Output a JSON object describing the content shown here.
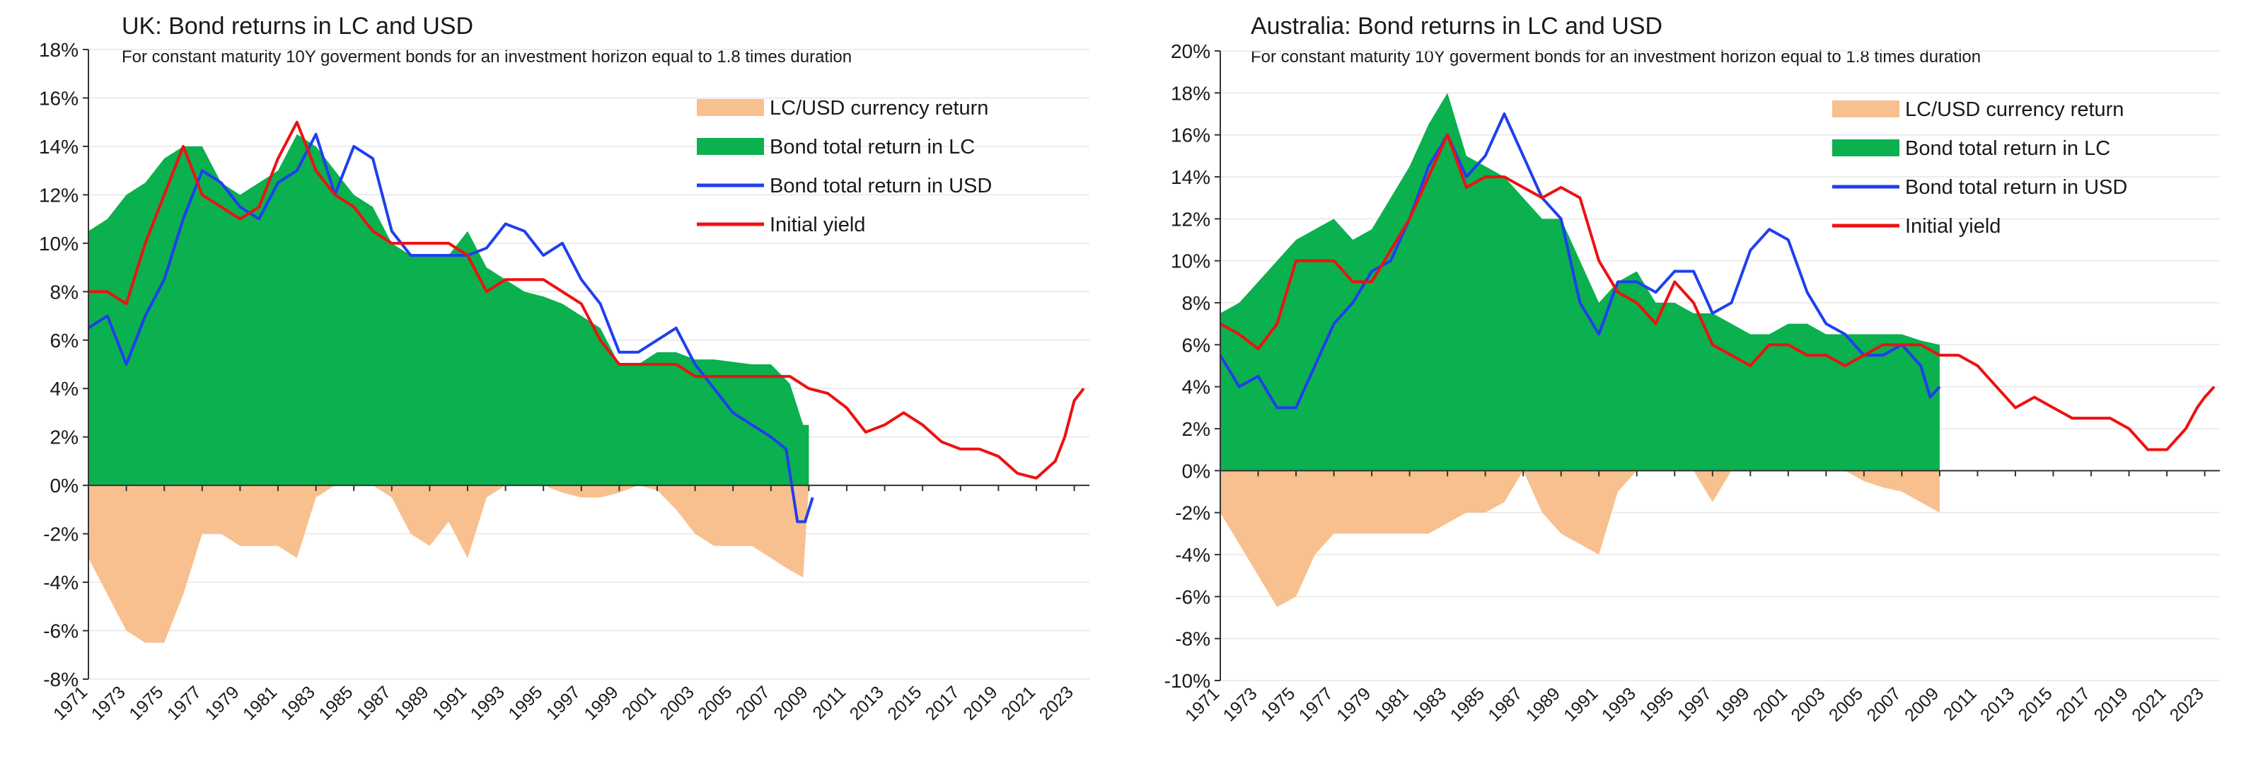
{
  "colors": {
    "currency": "#f8c08e",
    "lc": "#0bb04f",
    "usd": "#1f3ff0",
    "yield": "#ee1111",
    "grid": "#e6e6e6",
    "axis": "#333333"
  },
  "chart_data": [
    {
      "type": "area",
      "title": "UK: Bond returns in LC and USD",
      "subtitle": "For constant maturity 10Y goverment bonds for an investment horizon equal to 1.8 times duration",
      "ylim": [
        -8,
        18
      ],
      "yticks": [
        -8,
        -6,
        -4,
        -2,
        0,
        2,
        4,
        6,
        8,
        10,
        12,
        14,
        16,
        18
      ],
      "ytick_labels": [
        "-8%",
        "-6%",
        "-4%",
        "-2%",
        "0%",
        "2%",
        "4%",
        "6%",
        "8%",
        "10%",
        "12%",
        "14%",
        "16%",
        "18%"
      ],
      "xlim": [
        1971,
        2023.8
      ],
      "xticks": [
        1971,
        1973,
        1975,
        1977,
        1979,
        1981,
        1983,
        1985,
        1987,
        1989,
        1991,
        1993,
        1995,
        1997,
        1999,
        2001,
        2003,
        2005,
        2007,
        2009,
        2011,
        2013,
        2015,
        2017,
        2019,
        2021,
        2023
      ],
      "xtick_labels": [
        "1971",
        "1973",
        "1975",
        "1977",
        "1979",
        "1981",
        "1983",
        "1985",
        "1987",
        "1989",
        "1991",
        "1993",
        "1995",
        "1997",
        "1999",
        "2001",
        "2003",
        "2005",
        "2007",
        "2009",
        "2011",
        "2013",
        "2015",
        "2017",
        "2019",
        "2021",
        "2023"
      ],
      "legend": [
        {
          "key": "currency",
          "label": "LC/USD currency return"
        },
        {
          "key": "lc",
          "label": "Bond total return in LC"
        },
        {
          "key": "usd",
          "label": "Bond total return in USD"
        },
        {
          "key": "yield",
          "label": "Initial yield"
        }
      ],
      "series": {
        "lc": {
          "x": [
            1971,
            1972,
            1973,
            1974,
            1975,
            1976,
            1977,
            1978,
            1979,
            1980,
            1981,
            1982,
            1983,
            1984,
            1985,
            1986,
            1987,
            1988,
            1989,
            1990,
            1991,
            1992,
            1993,
            1994,
            1995,
            1996,
            1997,
            1998,
            1999,
            2000,
            2001,
            2002,
            2003,
            2004,
            2005,
            2006,
            2007,
            2008,
            2008.7,
            2009
          ],
          "y": [
            10.5,
            11,
            12,
            12.5,
            13.5,
            14,
            14,
            12.5,
            12,
            12.5,
            13,
            14.5,
            14,
            13,
            12,
            11.5,
            10,
            9.5,
            9.5,
            9.5,
            10.5,
            9,
            8.5,
            8,
            7.8,
            7.5,
            7,
            6.5,
            5,
            5,
            5.5,
            5.5,
            5.2,
            5.2,
            5.1,
            5,
            5,
            4.2,
            2.5,
            2.5
          ]
        },
        "currency": {
          "x": [
            1971,
            1972,
            1973,
            1974,
            1975,
            1976,
            1977,
            1978,
            1979,
            1980,
            1981,
            1982,
            1983,
            1984,
            1985,
            1986,
            1987,
            1988,
            1989,
            1990,
            1991,
            1992,
            1993,
            1994,
            1995,
            1996,
            1997,
            1998,
            1999,
            2000,
            2001,
            2002,
            2003,
            2004,
            2005,
            2006,
            2007,
            2008,
            2008.7,
            2009
          ],
          "y": [
            -3,
            -4.5,
            -6,
            -6.5,
            -6.5,
            -4.5,
            -2,
            -2,
            -2.5,
            -2.5,
            -2.5,
            -3,
            -0.5,
            0,
            0,
            0,
            -0.5,
            -2,
            -2.5,
            -1.5,
            -3,
            -0.5,
            0,
            0,
            0,
            -0.3,
            -0.5,
            -0.5,
            -0.3,
            0,
            -0.2,
            -1,
            -2,
            -2.5,
            -2.5,
            -2.5,
            -3,
            -3.5,
            -3.8,
            0
          ]
        },
        "usd": {
          "x": [
            1971,
            1972,
            1973,
            1974,
            1975,
            1976,
            1977,
            1978,
            1979,
            1980,
            1981,
            1982,
            1983,
            1984,
            1985,
            1986,
            1987,
            1988,
            1989,
            1990,
            1991,
            1992,
            1993,
            1994,
            1995,
            1996,
            1997,
            1998,
            1999,
            2000,
            2001,
            2002,
            2003,
            2004,
            2005,
            2006,
            2007,
            2007.8,
            2008.4,
            2008.8,
            2009.2
          ],
          "y": [
            6.5,
            7,
            5,
            7,
            8.5,
            11,
            13,
            12.5,
            11.5,
            11,
            12.5,
            13,
            14.5,
            12,
            14,
            13.5,
            10.5,
            9.5,
            9.5,
            9.5,
            9.5,
            9.8,
            10.8,
            10.5,
            9.5,
            10,
            8.5,
            7.5,
            5.5,
            5.5,
            6,
            6.5,
            5,
            4,
            3,
            2.5,
            2,
            1.5,
            -1.5,
            -1.5,
            -0.5
          ]
        },
        "yield": {
          "x": [
            1971,
            1972,
            1973,
            1974,
            1975,
            1976,
            1977,
            1978,
            1979,
            1980,
            1981,
            1982,
            1983,
            1984,
            1985,
            1986,
            1987,
            1988,
            1989,
            1990,
            1991,
            1992,
            1993,
            1994,
            1995,
            1996,
            1997,
            1998,
            1999,
            2000,
            2001,
            2002,
            2003,
            2004,
            2005,
            2006,
            2007,
            2008,
            2009,
            2010,
            2011,
            2012,
            2013,
            2014,
            2015,
            2016,
            2017,
            2018,
            2019,
            2020,
            2021,
            2022,
            2022.5,
            2023,
            2023.5
          ],
          "y": [
            8,
            8,
            7.5,
            10,
            12,
            14,
            12,
            11.5,
            11,
            11.5,
            13.5,
            15,
            13,
            12,
            11.5,
            10.5,
            10,
            10,
            10,
            10,
            9.5,
            8,
            8.5,
            8.5,
            8.5,
            8,
            7.5,
            6,
            5,
            5,
            5,
            5,
            4.5,
            4.5,
            4.5,
            4.5,
            4.5,
            4.5,
            4,
            3.8,
            3.2,
            2.2,
            2.5,
            3,
            2.5,
            1.8,
            1.5,
            1.5,
            1.2,
            0.5,
            0.3,
            1,
            2,
            3.5,
            4
          ]
        }
      }
    },
    {
      "type": "area",
      "title": "Australia: Bond returns in LC and USD",
      "subtitle": "For constant maturity 10Y goverment bonds for an investment horizon equal to 1.8 times duration",
      "ylim": [
        -10,
        20
      ],
      "yticks": [
        -10,
        -8,
        -6,
        -4,
        -2,
        0,
        2,
        4,
        6,
        8,
        10,
        12,
        14,
        16,
        18,
        20
      ],
      "ytick_labels": [
        "-10%",
        "-8%",
        "-6%",
        "-4%",
        "-2%",
        "0%",
        "2%",
        "4%",
        "6%",
        "8%",
        "10%",
        "12%",
        "14%",
        "16%",
        "18%",
        "20%"
      ],
      "xlim": [
        1971,
        2023.8
      ],
      "xticks": [
        1971,
        1973,
        1975,
        1977,
        1979,
        1981,
        1983,
        1985,
        1987,
        1989,
        1991,
        1993,
        1995,
        1997,
        1999,
        2001,
        2003,
        2005,
        2007,
        2009,
        2011,
        2013,
        2015,
        2017,
        2019,
        2021,
        2023
      ],
      "xtick_labels": [
        "1971",
        "1973",
        "1975",
        "1977",
        "1979",
        "1981",
        "1983",
        "1985",
        "1987",
        "1989",
        "1991",
        "1993",
        "1995",
        "1997",
        "1999",
        "2001",
        "2003",
        "2005",
        "2007",
        "2009",
        "2011",
        "2013",
        "2015",
        "2017",
        "2019",
        "2021",
        "2023"
      ],
      "legend": [
        {
          "key": "currency",
          "label": "LC/USD currency return"
        },
        {
          "key": "lc",
          "label": "Bond total return in LC"
        },
        {
          "key": "usd",
          "label": "Bond total return in USD"
        },
        {
          "key": "yield",
          "label": "Initial yield"
        }
      ],
      "series": {
        "lc": {
          "x": [
            1971,
            1972,
            1973,
            1974,
            1975,
            1976,
            1977,
            1978,
            1979,
            1980,
            1981,
            1982,
            1983,
            1984,
            1985,
            1986,
            1987,
            1988,
            1989,
            1990,
            1991,
            1992,
            1993,
            1994,
            1995,
            1996,
            1997,
            1998,
            1999,
            2000,
            2001,
            2002,
            2003,
            2004,
            2005,
            2006,
            2007,
            2008,
            2009
          ],
          "y": [
            7.5,
            8,
            9,
            10,
            11,
            11.5,
            12,
            11,
            11.5,
            13,
            14.5,
            16.5,
            18,
            15,
            14.5,
            14,
            13,
            12,
            12,
            10,
            8,
            9,
            9.5,
            8,
            8,
            7.5,
            7.5,
            7,
            6.5,
            6.5,
            7,
            7,
            6.5,
            6.5,
            6.5,
            6.5,
            6.5,
            6.2,
            6
          ]
        },
        "currency": {
          "x": [
            1971,
            1972,
            1973,
            1974,
            1975,
            1976,
            1977,
            1978,
            1979,
            1980,
            1981,
            1982,
            1983,
            1984,
            1985,
            1986,
            1987,
            1988,
            1989,
            1990,
            1991,
            1992,
            1993,
            1994,
            1995,
            1996,
            1997,
            1998,
            1999,
            2000,
            2001,
            2002,
            2003,
            2004,
            2005,
            2006,
            2007,
            2008,
            2009
          ],
          "y": [
            -2,
            -3.5,
            -5,
            -6.5,
            -6,
            -4,
            -3,
            -3,
            -3,
            -3,
            -3,
            -3,
            -2.5,
            -2,
            -2,
            -1.5,
            0,
            -2,
            -3,
            -3.5,
            -4,
            -1,
            0,
            0,
            0,
            0,
            -1.5,
            0,
            0,
            0,
            0,
            0,
            0,
            0,
            -0.5,
            -0.8,
            -1,
            -1.5,
            -2
          ]
        },
        "usd": {
          "x": [
            1971,
            1972,
            1973,
            1974,
            1975,
            1976,
            1977,
            1978,
            1979,
            1980,
            1981,
            1982,
            1983,
            1984,
            1985,
            1986,
            1987,
            1988,
            1989,
            1990,
            1991,
            1992,
            1993,
            1994,
            1995,
            1996,
            1997,
            1998,
            1999,
            2000,
            2001,
            2002,
            2003,
            2004,
            2005,
            2006,
            2007,
            2008,
            2008.5,
            2009
          ],
          "y": [
            5.5,
            4,
            4.5,
            3,
            3,
            5,
            7,
            8,
            9.5,
            10,
            12,
            14.5,
            16,
            14,
            15,
            17,
            15,
            13,
            12,
            8,
            6.5,
            9,
            9,
            8.5,
            9.5,
            9.5,
            7.5,
            8,
            10.5,
            11.5,
            11,
            8.5,
            7,
            6.5,
            5.5,
            5.5,
            6,
            5,
            3.5,
            4
          ]
        },
        "yield": {
          "x": [
            1971,
            1972,
            1973,
            1974,
            1975,
            1976,
            1977,
            1978,
            1979,
            1980,
            1981,
            1982,
            1983,
            1984,
            1985,
            1986,
            1987,
            1988,
            1989,
            1990,
            1991,
            1992,
            1993,
            1994,
            1995,
            1996,
            1997,
            1998,
            1999,
            2000,
            2001,
            2002,
            2003,
            2004,
            2005,
            2006,
            2007,
            2008,
            2009,
            2010,
            2011,
            2012,
            2013,
            2014,
            2015,
            2016,
            2017,
            2018,
            2019,
            2020,
            2021,
            2022,
            2022.6,
            2023,
            2023.5
          ],
          "y": [
            7,
            6.5,
            5.8,
            7,
            10,
            10,
            10,
            9,
            9,
            10.5,
            12,
            14,
            16,
            13.5,
            14,
            14,
            13.5,
            13,
            13.5,
            13,
            10,
            8.5,
            8,
            7,
            9,
            8,
            6,
            5.5,
            5,
            6,
            6,
            5.5,
            5.5,
            5,
            5.5,
            6,
            6,
            6,
            5.5,
            5.5,
            5,
            4,
            3,
            3.5,
            3,
            2.5,
            2.5,
            2.5,
            2,
            1,
            1,
            2,
            3,
            3.5,
            4
          ]
        }
      }
    }
  ]
}
